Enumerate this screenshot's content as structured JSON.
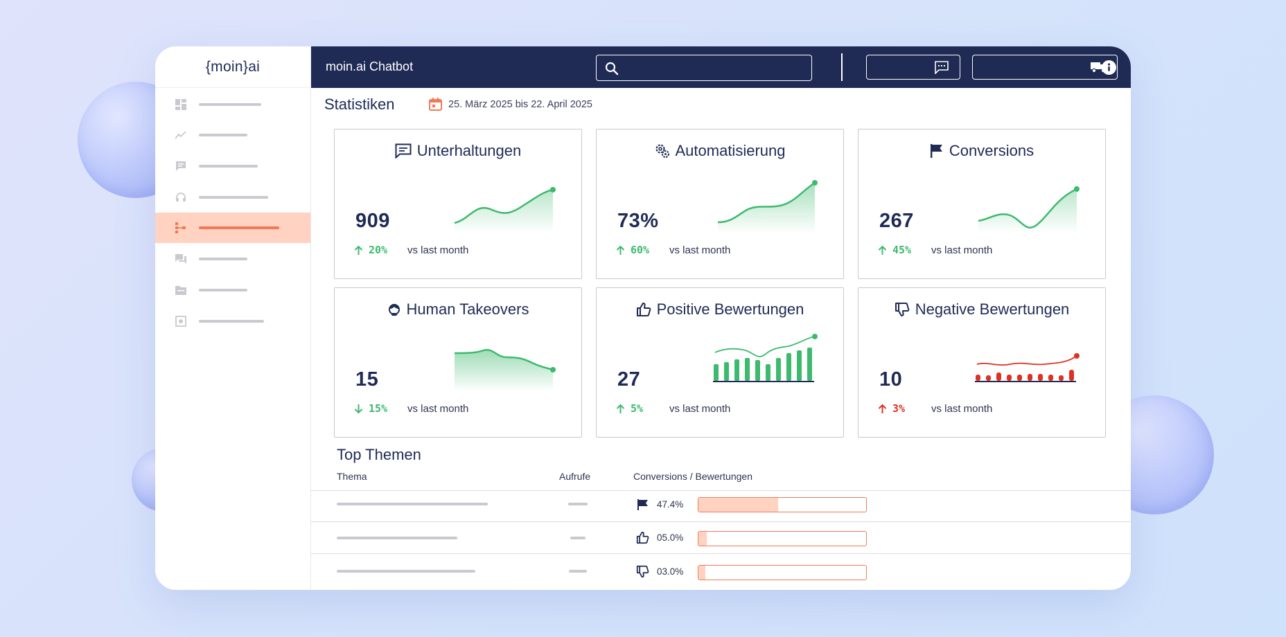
{
  "app": {
    "logo": "{moin}ai",
    "title": "moin.ai Chatbot"
  },
  "colors": {
    "navy": "#1f2a55",
    "accent": "#f07a55",
    "accent_light": "#ffd2c2",
    "positive": "#3dba6d",
    "negative": "#e03020"
  },
  "sidebar": {
    "items": [
      {
        "icon": "dashboard-icon",
        "active": false
      },
      {
        "icon": "trend-line-icon",
        "active": false
      },
      {
        "icon": "chat-bubble-icon",
        "active": false
      },
      {
        "icon": "headset-icon",
        "active": false
      },
      {
        "icon": "flow-tree-icon",
        "active": true
      },
      {
        "icon": "conversations-icon",
        "active": false
      },
      {
        "icon": "folder-icon",
        "active": false
      },
      {
        "icon": "settings-icon",
        "active": false
      }
    ]
  },
  "header": {
    "search_icon": "search-icon",
    "chat_button_icon": "chat-icon",
    "delivery_button_icon": "truck-icon",
    "info_icon": "info-icon"
  },
  "stats": {
    "title": "Statistiken",
    "date_range": "25. März 2025 bis 22. April 2025"
  },
  "cards": [
    {
      "title": "Unterhaltungen",
      "icon": "chat-icon",
      "value": "909",
      "direction": "up",
      "change": "20%",
      "vs": "vs last month",
      "chart": "line"
    },
    {
      "title": "Automatisierung",
      "icon": "gears-icon",
      "value": "73%",
      "direction": "up",
      "change": "60%",
      "vs": "vs last month",
      "chart": "line"
    },
    {
      "title": "Conversions",
      "icon": "flag-icon",
      "value": "267",
      "direction": "up",
      "change": "45%",
      "vs": "vs last month",
      "chart": "line"
    },
    {
      "title": "Human Takeovers",
      "icon": "agent-icon",
      "value": "15",
      "direction": "down",
      "change": "15%",
      "vs": "vs last month",
      "chart": "line"
    },
    {
      "title": "Positive Bewertungen",
      "icon": "thumbs-up-icon",
      "value": "27",
      "direction": "up",
      "change": "5%",
      "vs": "vs last month",
      "chart": "bars"
    },
    {
      "title": "Negative Bewertungen",
      "icon": "thumbs-down-icon",
      "value": "10",
      "direction": "up-negative",
      "change": "3%",
      "vs": "vs last month",
      "chart": "bars"
    }
  ],
  "top_topics": {
    "title": "Top Themen",
    "columns": {
      "topic": "Thema",
      "calls": "Aufrufe",
      "conv": "Conversions / Bewertungen"
    },
    "rows": [
      {
        "icon": "flag-icon",
        "percent": "47.4%",
        "fill": 0.474
      },
      {
        "icon": "thumbs-up-icon",
        "percent": "05.0%",
        "fill": 0.05
      },
      {
        "icon": "thumbs-down-icon",
        "percent": "03.0%",
        "fill": 0.03
      }
    ]
  }
}
